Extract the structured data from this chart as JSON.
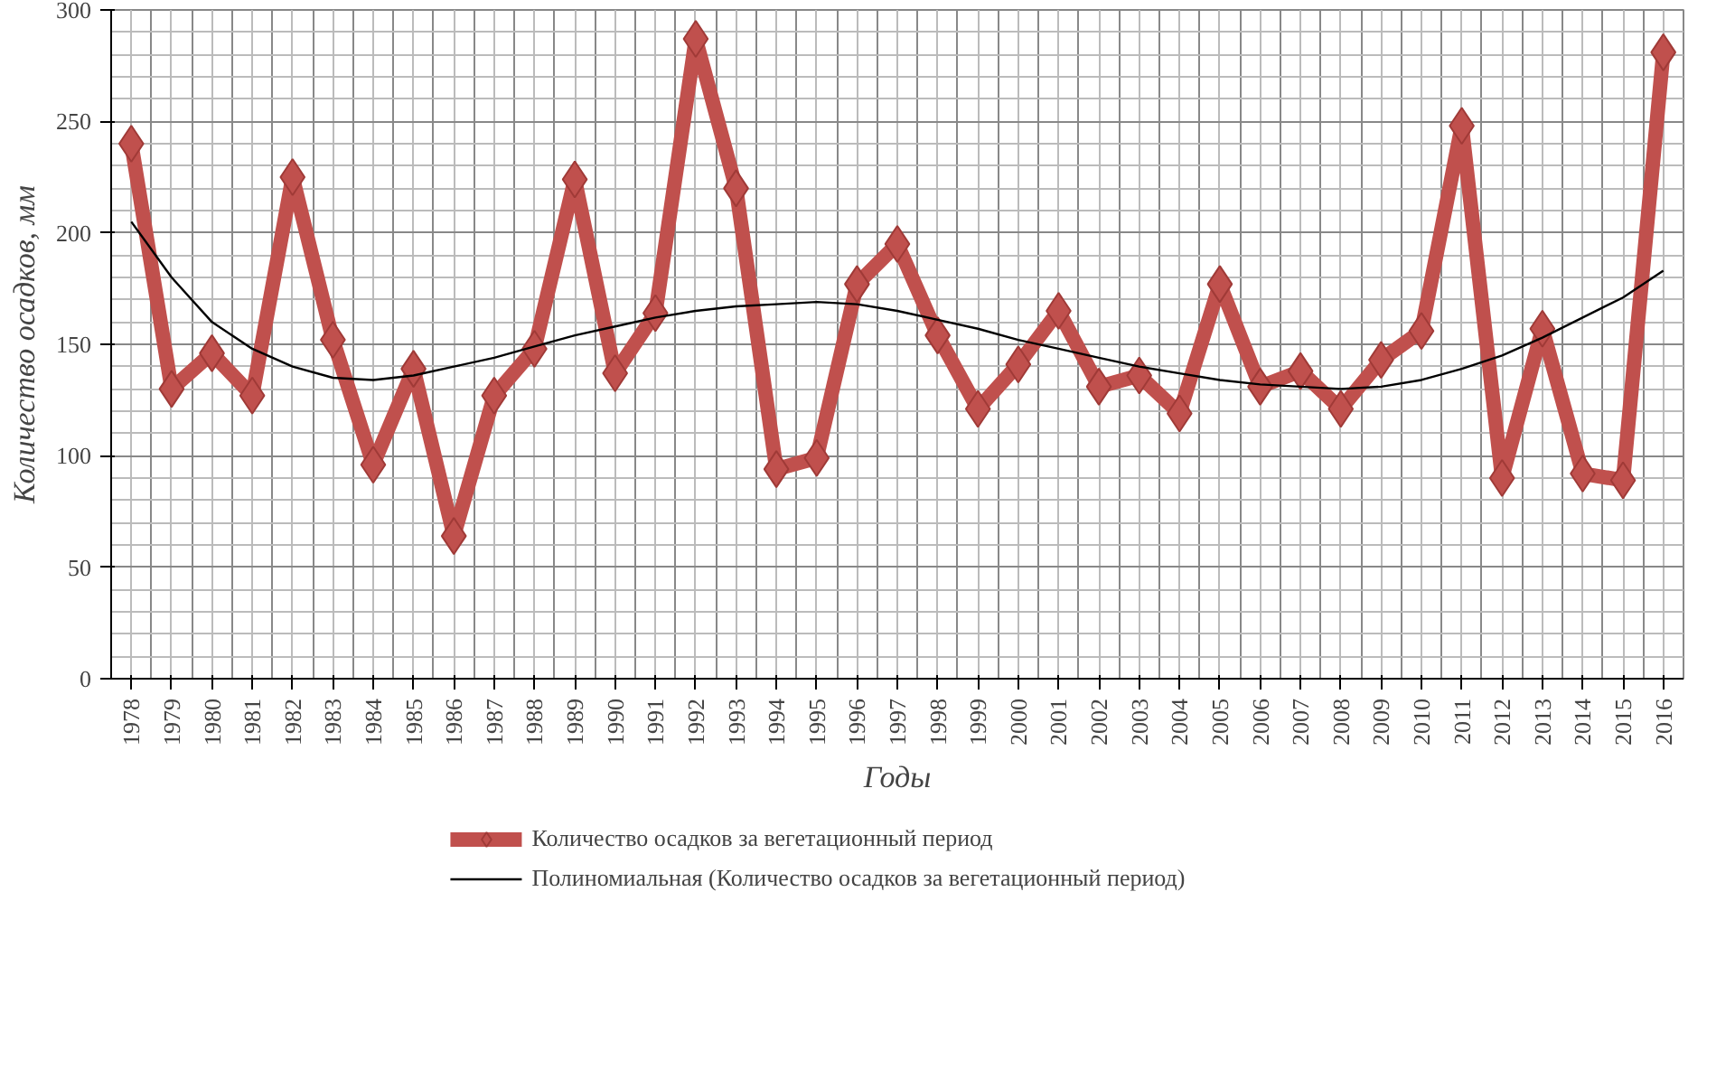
{
  "chart_data": {
    "type": "line",
    "xlabel": "Годы",
    "ylabel": "Количество осадков, мм",
    "categories": [
      "1978",
      "1979",
      "1980",
      "1981",
      "1982",
      "1983",
      "1984",
      "1985",
      "1986",
      "1987",
      "1988",
      "1989",
      "1990",
      "1991",
      "1992",
      "1993",
      "1994",
      "1995",
      "1996",
      "1997",
      "1998",
      "1999",
      "2000",
      "2001",
      "2002",
      "2003",
      "2004",
      "2005",
      "2006",
      "2007",
      "2008",
      "2009",
      "2010",
      "2011",
      "2012",
      "2013",
      "2014",
      "2015",
      "2016"
    ],
    "series": [
      {
        "name": "Количество осадков за вегетационный период",
        "color": "#c0504d",
        "marker": "diamond",
        "values": [
          240,
          130,
          146,
          127,
          225,
          152,
          96,
          139,
          64,
          127,
          148,
          224,
          137,
          164,
          287,
          220,
          94,
          99,
          177,
          195,
          154,
          121,
          141,
          165,
          131,
          136,
          119,
          177,
          131,
          138,
          121,
          143,
          156,
          248,
          90,
          157,
          92,
          89,
          281
        ]
      },
      {
        "name": "Полиномиальная (Количество осадков за вегетационный период)",
        "color": "#000000",
        "marker": "none",
        "values": [
          205,
          180,
          160,
          148,
          140,
          135,
          134,
          136,
          140,
          144,
          149,
          154,
          158,
          162,
          165,
          167,
          168,
          169,
          168,
          165,
          161,
          157,
          152,
          148,
          144,
          140,
          137,
          134,
          132,
          131,
          130,
          131,
          134,
          139,
          145,
          153,
          162,
          171,
          183
        ]
      }
    ],
    "ylim": [
      0,
      300
    ],
    "yticks": [
      0,
      50,
      100,
      150,
      200,
      250,
      300
    ],
    "grid": true,
    "legend": "bottom"
  }
}
